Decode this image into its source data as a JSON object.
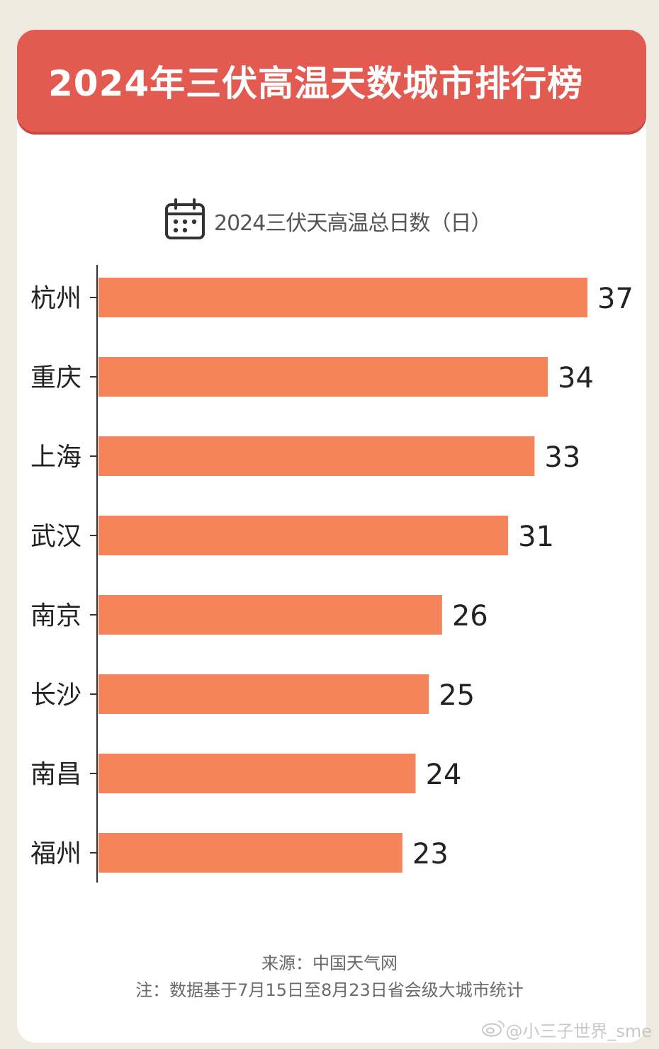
{
  "header": {
    "title": "2024年三伏高温天数城市排行榜"
  },
  "legend": {
    "icon": "calendar-icon",
    "label": "2024三伏天高温总日数（日）"
  },
  "chart_data": {
    "type": "bar",
    "orientation": "horizontal",
    "title": "2024年三伏高温天数城市排行榜",
    "series_label": "2024三伏天高温总日数（日）",
    "categories": [
      "杭州",
      "重庆",
      "上海",
      "武汉",
      "南京",
      "长沙",
      "南昌",
      "福州"
    ],
    "values": [
      37,
      34,
      33,
      31,
      26,
      25,
      24,
      23
    ],
    "xlim": [
      0,
      37
    ],
    "grid": false,
    "bar_color": "#f5845a"
  },
  "footer": {
    "source": "来源：中国天气网",
    "note": "注：数据基于7月15日至8月23日省会级大城市统计"
  },
  "watermark": {
    "icon": "weibo-icon",
    "text": "@小三子世界_sme"
  },
  "colors": {
    "banner": "#e25a50",
    "bar": "#f5845a",
    "background": "#efeadf",
    "card": "#ffffff"
  }
}
